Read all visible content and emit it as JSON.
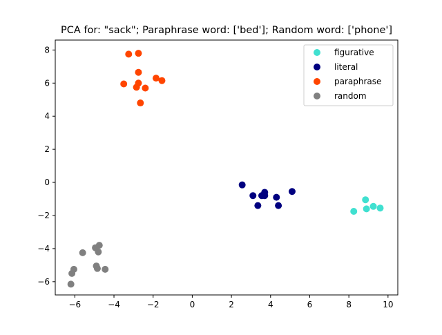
{
  "chart_data": {
    "type": "scatter",
    "title": "PCA for: \"sack\"; Paraphrase word: ['bed']; Random word: ['phone']",
    "xlabel": "",
    "ylabel": "",
    "xlim": [
      -7.0,
      10.5
    ],
    "ylim": [
      -6.8,
      8.6
    ],
    "xticks": [
      -6,
      -4,
      -2,
      0,
      2,
      4,
      6,
      8,
      10
    ],
    "yticks": [
      -6,
      -4,
      -2,
      0,
      2,
      4,
      6,
      8
    ],
    "grid": false,
    "legend_position": "top-right",
    "series": [
      {
        "name": "figurative",
        "color": "#40e0d0",
        "points": [
          [
            8.25,
            -1.75
          ],
          [
            8.85,
            -1.05
          ],
          [
            8.9,
            -1.6
          ],
          [
            9.25,
            -1.45
          ],
          [
            9.6,
            -1.55
          ]
        ]
      },
      {
        "name": "literal",
        "color": "#000080",
        "points": [
          [
            2.55,
            -0.15
          ],
          [
            3.1,
            -0.8
          ],
          [
            3.35,
            -1.4
          ],
          [
            3.55,
            -0.8
          ],
          [
            3.7,
            -0.8
          ],
          [
            3.7,
            -0.6
          ],
          [
            4.3,
            -0.9
          ],
          [
            4.4,
            -1.4
          ],
          [
            5.1,
            -0.55
          ]
        ]
      },
      {
        "name": "paraphrase",
        "color": "#ff4500",
        "points": [
          [
            -3.25,
            7.75
          ],
          [
            -2.75,
            7.8
          ],
          [
            -3.5,
            5.95
          ],
          [
            -2.85,
            5.75
          ],
          [
            -2.75,
            6.0
          ],
          [
            -2.75,
            6.65
          ],
          [
            -2.65,
            4.8
          ],
          [
            -2.4,
            5.7
          ],
          [
            -1.85,
            6.3
          ],
          [
            -1.55,
            6.15
          ]
        ]
      },
      {
        "name": "random",
        "color": "#808080",
        "points": [
          [
            -6.2,
            -6.15
          ],
          [
            -6.15,
            -5.5
          ],
          [
            -6.05,
            -5.25
          ],
          [
            -5.6,
            -4.25
          ],
          [
            -4.95,
            -3.95
          ],
          [
            -4.9,
            -5.05
          ],
          [
            -4.85,
            -5.2
          ],
          [
            -4.8,
            -4.2
          ],
          [
            -4.75,
            -3.8
          ],
          [
            -4.45,
            -5.25
          ]
        ]
      }
    ]
  }
}
